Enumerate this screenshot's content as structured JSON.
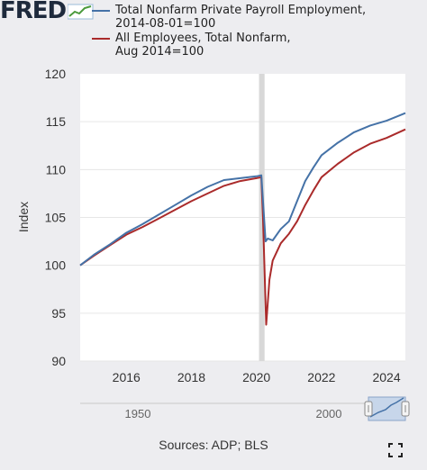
{
  "header": {
    "logo_text": "FRED",
    "logo_icon": "fred-graph-icon"
  },
  "legend": [
    {
      "label_line1": "Total Nonfarm Private Payroll Employment,",
      "label_line2": "2014-08-01=100",
      "color": "#4572a7"
    },
    {
      "label_line1": "All Employees, Total Nonfarm,",
      "label_line2": "Aug 2014=100",
      "color": "#aa2b2b"
    }
  ],
  "footer": {
    "sources": "Sources: ADP; BLS",
    "fullscreen_icon": "fullscreen-icon"
  },
  "chart_data": {
    "type": "line",
    "ylabel": "Index",
    "ylim": [
      90,
      120
    ],
    "yticks": [
      "90",
      "95",
      "100",
      "105",
      "110",
      "115",
      "120"
    ],
    "xlim": [
      2014.58,
      2024.58
    ],
    "xticks": [
      "2016",
      "2018",
      "2020",
      "2022",
      "2024"
    ],
    "shaded_period": {
      "start": 2020.08,
      "end": 2020.25,
      "label": "recession"
    },
    "navigator": {
      "labels": [
        "1950",
        "2000"
      ]
    },
    "series": [
      {
        "color": "#4572a7",
        "x": [
          2014.58,
          2015.0,
          2015.5,
          2016.0,
          2016.5,
          2017.0,
          2017.5,
          2018.0,
          2018.5,
          2019.0,
          2019.5,
          2020.0,
          2020.15,
          2020.2,
          2020.28,
          2020.35,
          2020.5,
          2020.75,
          2021.0,
          2021.25,
          2021.5,
          2021.75,
          2022.0,
          2022.5,
          2023.0,
          2023.5,
          2024.0,
          2024.58
        ],
        "y": [
          100.0,
          101.1,
          102.2,
          103.4,
          104.3,
          105.3,
          106.3,
          107.3,
          108.2,
          108.9,
          109.1,
          109.3,
          109.4,
          106.8,
          102.5,
          102.8,
          102.6,
          103.8,
          104.6,
          106.7,
          108.8,
          110.2,
          111.5,
          112.8,
          113.9,
          114.6,
          115.1,
          115.9
        ]
      },
      {
        "color": "#aa2b2b",
        "x": [
          2014.58,
          2015.0,
          2015.5,
          2016.0,
          2016.5,
          2017.0,
          2017.5,
          2018.0,
          2018.5,
          2019.0,
          2019.5,
          2020.0,
          2020.15,
          2020.2,
          2020.3,
          2020.4,
          2020.5,
          2020.75,
          2021.0,
          2021.25,
          2021.5,
          2021.75,
          2022.0,
          2022.5,
          2023.0,
          2023.5,
          2024.0,
          2024.58
        ],
        "y": [
          100.0,
          101.0,
          102.1,
          103.2,
          104.0,
          104.9,
          105.8,
          106.7,
          107.5,
          108.3,
          108.8,
          109.1,
          109.2,
          105.0,
          93.8,
          98.5,
          100.5,
          102.3,
          103.3,
          104.6,
          106.3,
          107.8,
          109.2,
          110.6,
          111.8,
          112.7,
          113.3,
          114.2
        ]
      }
    ]
  }
}
